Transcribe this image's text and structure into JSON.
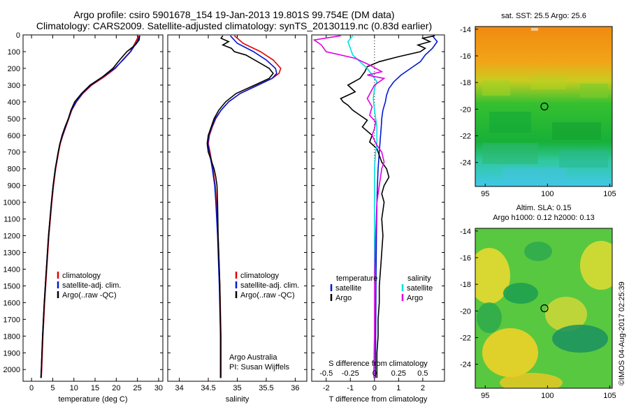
{
  "title_line1": "Argo profile: csiro 5901678_154 19-Jan-2013 19.801S 99.754E (DM data)",
  "title_line2": "Climatology: CARS2009. Satellite-adjusted climatology: synTS_20130119.nc (0.83d earlier)",
  "credit": "©IMOS 04-Aug-2017 02:25:39",
  "colors": {
    "climatology": "#e00000",
    "satellite": "#0018d0",
    "argo": "#000000",
    "sal_satellite": "#00e0e0",
    "sal_argo": "#e000e0"
  },
  "chart_data": [
    {
      "type": "line",
      "id": "temperature",
      "xlabel": "temperature (deg C)",
      "xlim": [
        -2,
        31
      ],
      "ylim": [
        2070,
        0
      ],
      "xticks": [
        0,
        5,
        10,
        15,
        20,
        25,
        30
      ],
      "yticks": [
        0,
        100,
        200,
        300,
        400,
        500,
        600,
        700,
        800,
        900,
        1000,
        1100,
        1200,
        1300,
        1400,
        1500,
        1600,
        1700,
        1800,
        1900,
        2000
      ],
      "legend": [
        "climatology",
        "satellite-adj. clim.",
        "Argo(..raw -QC)"
      ],
      "series": [
        {
          "name": "climatology",
          "depth": [
            5,
            50,
            100,
            150,
            200,
            250,
            300,
            350,
            400,
            450,
            500,
            550,
            600,
            650,
            700,
            800,
            900,
            1000,
            1200,
            1400,
            1600,
            1800,
            2000,
            2050
          ],
          "values": [
            25.3,
            24.4,
            23.3,
            21.5,
            19.8,
            17.2,
            14.2,
            12.1,
            10.6,
            9.5,
            8.8,
            8.1,
            7.4,
            6.8,
            6.4,
            5.7,
            5.2,
            4.8,
            4.1,
            3.6,
            3.1,
            2.7,
            2.4,
            2.3
          ]
        },
        {
          "name": "satellite-adj. clim.",
          "depth": [
            5,
            50,
            100,
            150,
            200,
            250,
            300,
            350,
            400,
            450,
            500,
            550,
            600,
            650,
            700,
            800,
            900,
            1000,
            1200,
            1400,
            1600,
            1800,
            2000,
            2050
          ],
          "values": [
            25.6,
            24.7,
            23.4,
            21.6,
            19.6,
            16.9,
            14.0,
            12.0,
            10.5,
            9.4,
            8.7,
            8.0,
            7.3,
            6.7,
            6.3,
            5.6,
            5.1,
            4.7,
            4.0,
            3.5,
            3.0,
            2.6,
            2.3,
            2.2
          ]
        },
        {
          "name": "Argo(..raw -QC)",
          "depth": [
            5,
            30,
            60,
            100,
            150,
            200,
            250,
            300,
            350,
            400,
            450,
            500,
            550,
            600,
            650,
            700,
            800,
            900,
            1000,
            1200,
            1400,
            1600,
            1800,
            2000,
            2050
          ],
          "values": [
            25.5,
            25.4,
            24.5,
            22.5,
            20.8,
            19.2,
            16.8,
            13.8,
            11.8,
            10.2,
            9.3,
            8.7,
            7.9,
            7.2,
            6.7,
            6.3,
            5.6,
            5.1,
            4.7,
            4.0,
            3.5,
            3.0,
            2.6,
            2.3,
            2.2
          ]
        }
      ]
    },
    {
      "type": "line",
      "id": "salinity",
      "xlabel": "salinity",
      "xlim": [
        33.8,
        36.2
      ],
      "ylim": [
        2070,
        0
      ],
      "xticks": [
        34,
        34.5,
        35,
        35.5,
        36
      ],
      "legend": [
        "climatology",
        "satellite-adj. clim.",
        "Argo(..raw -QC)"
      ],
      "annotation": [
        "Argo Australia",
        "PI: Susan Wijffels"
      ],
      "series": [
        {
          "name": "climatology",
          "depth": [
            5,
            50,
            100,
            150,
            200,
            230,
            260,
            300,
            350,
            400,
            450,
            500,
            550,
            600,
            650,
            700,
            800,
            900,
            1000,
            1200,
            1500,
            1800,
            2000,
            2050
          ],
          "values": [
            34.95,
            35.1,
            35.4,
            35.62,
            35.75,
            35.72,
            35.6,
            35.35,
            35.05,
            34.85,
            34.72,
            34.63,
            34.57,
            34.52,
            34.5,
            34.53,
            34.58,
            34.62,
            34.64,
            34.67,
            34.7,
            34.72,
            34.72,
            34.72
          ]
        },
        {
          "name": "satellite-adj. clim.",
          "depth": [
            5,
            50,
            100,
            150,
            200,
            230,
            260,
            300,
            350,
            400,
            450,
            500,
            550,
            600,
            650,
            700,
            800,
            900,
            1000,
            1200,
            1500,
            1800,
            2000,
            2050
          ],
          "values": [
            34.88,
            35.0,
            35.28,
            35.5,
            35.66,
            35.68,
            35.6,
            35.36,
            35.05,
            34.85,
            34.72,
            34.62,
            34.56,
            34.51,
            34.49,
            34.52,
            34.57,
            34.61,
            34.63,
            34.66,
            34.69,
            34.71,
            34.71,
            34.71
          ]
        },
        {
          "name": "Argo(..raw -QC)",
          "depth": [
            5,
            20,
            40,
            60,
            80,
            100,
            120,
            150,
            180,
            200,
            230,
            260,
            300,
            350,
            400,
            450,
            500,
            550,
            600,
            650,
            700,
            750,
            800,
            850,
            900,
            1000,
            1200,
            1500,
            1800,
            2000,
            2050
          ],
          "values": [
            34.75,
            34.72,
            34.85,
            34.75,
            34.9,
            34.95,
            35.15,
            35.3,
            35.45,
            35.55,
            35.62,
            35.55,
            35.3,
            34.98,
            34.8,
            34.68,
            34.6,
            34.55,
            34.5,
            34.48,
            34.5,
            34.55,
            34.6,
            34.63,
            34.65,
            34.66,
            34.67,
            34.7,
            34.71,
            34.71,
            34.71
          ]
        }
      ]
    },
    {
      "type": "line",
      "id": "difference",
      "xlabel": "T difference from climatology",
      "xlabel_top": "S difference from climatology",
      "xlim": [
        -2.6,
        2.9
      ],
      "ylim": [
        2070,
        0
      ],
      "xticks": [
        -2,
        -1,
        0,
        1,
        2
      ],
      "top_ticks": [
        {
          "label": "-0.5",
          "t": -2
        },
        {
          "label": "-0.25",
          "t": -1
        },
        {
          "label": "0",
          "t": 0
        },
        {
          "label": "0.25",
          "t": 1
        },
        {
          "label": "0.5",
          "t": 2
        }
      ],
      "legend_left_title": "temperature",
      "legend_right_title": "salinity",
      "legend_left": [
        "satellite",
        "Argo"
      ],
      "legend_right": [
        "satellite",
        "Argo"
      ],
      "series": [
        {
          "name": "T satellite",
          "depth": [
            5,
            40,
            80,
            120,
            160,
            200,
            240,
            280,
            320,
            360,
            400,
            450,
            500,
            550,
            600,
            700,
            800,
            900,
            1000,
            1200,
            1500,
            1800,
            2000,
            2050
          ],
          "values": [
            2.4,
            2.6,
            2.4,
            2.1,
            1.9,
            1.5,
            1.1,
            0.8,
            0.6,
            0.5,
            0.45,
            0.35,
            0.3,
            0.28,
            0.25,
            0.2,
            0.15,
            0.12,
            0.1,
            0.08,
            0.06,
            0.05,
            0.04,
            0.04
          ]
        },
        {
          "name": "T Argo",
          "depth": [
            5,
            20,
            40,
            60,
            80,
            100,
            130,
            160,
            190,
            220,
            260,
            300,
            340,
            380,
            400,
            420,
            450,
            480,
            510,
            550,
            600,
            640,
            680,
            720,
            760,
            800,
            850,
            900,
            950,
            1000,
            1100,
            1200,
            1300,
            1400,
            1500,
            1600,
            1700,
            1800,
            1900,
            2000,
            2050
          ],
          "values": [
            2.5,
            2.0,
            2.3,
            1.8,
            2.1,
            1.9,
            1.0,
            0.2,
            -0.3,
            -0.4,
            -0.6,
            -1.1,
            -0.8,
            -1.4,
            -1.3,
            -1.1,
            -0.9,
            -0.6,
            -0.3,
            -0.5,
            -0.1,
            -0.2,
            0.1,
            0.2,
            0.3,
            0.5,
            0.6,
            0.4,
            0.3,
            0.4,
            0.3,
            0.35,
            0.3,
            0.25,
            0.2,
            0.2,
            0.15,
            0.15,
            0.1,
            0.1,
            0.1
          ]
        },
        {
          "name": "S satellite",
          "depth": [
            5,
            40,
            80,
            120,
            160,
            200,
            240,
            280,
            320,
            380,
            450,
            500,
            550,
            600,
            650,
            700,
            800,
            900,
            1000,
            1200,
            1500,
            1800,
            2000,
            2050
          ],
          "values": [
            -0.9,
            -1.1,
            -1.0,
            -0.9,
            -0.6,
            -0.3,
            -0.1,
            0.1,
            0.0,
            -0.05,
            0.0,
            0.05,
            0.1,
            0.1,
            0.1,
            0.05,
            0.0,
            0.0,
            0.0,
            0.0,
            0.0,
            0.0,
            -0.02,
            -0.02
          ]
        },
        {
          "name": "S Argo",
          "depth": [
            5,
            30,
            60,
            100,
            140,
            180,
            220,
            240,
            260,
            300,
            380,
            430,
            480,
            520,
            560,
            600,
            660,
            700,
            760,
            800,
            900,
            1000,
            1200,
            1500,
            1800,
            2000,
            2050
          ],
          "values": [
            -1.4,
            -2.5,
            -2.2,
            -2.0,
            -0.8,
            -0.2,
            0.3,
            -0.3,
            0.4,
            0.0,
            -0.3,
            -0.1,
            -0.2,
            0.05,
            0.0,
            -0.1,
            0.1,
            0.3,
            0.4,
            0.3,
            0.2,
            0.1,
            0.05,
            0.0,
            0.0,
            -0.02,
            -0.02
          ]
        }
      ]
    }
  ],
  "maps": [
    {
      "id": "sst",
      "title": "sat. SST: 25.5 Argo: 25.6",
      "xticks": [
        95,
        100,
        105
      ],
      "yticks": [
        -14,
        -16,
        -18,
        -20,
        -22,
        -24
      ],
      "xlim": [
        94.2,
        105.2
      ],
      "ylim": [
        -25.8,
        -13.8
      ],
      "marker": {
        "lon": 99.754,
        "lat": -19.801
      }
    },
    {
      "id": "sla",
      "title_line1": "Altim. SLA: 0.15",
      "title_line2": "Argo h1000: 0.12 h2000: 0.13",
      "xticks": [
        95,
        100,
        105
      ],
      "yticks": [
        -14,
        -16,
        -18,
        -20,
        -22,
        -24
      ],
      "xlim": [
        94.2,
        105.2
      ],
      "ylim": [
        -25.8,
        -13.8
      ],
      "marker": {
        "lon": 99.754,
        "lat": -19.801
      }
    }
  ]
}
